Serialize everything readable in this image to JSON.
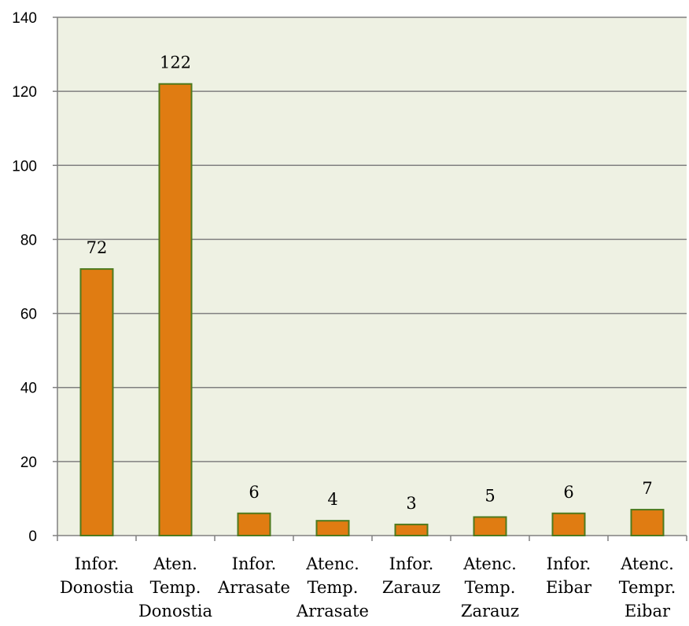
{
  "chart_data": {
    "type": "bar",
    "title": "",
    "xlabel": "",
    "ylabel": "",
    "categories": [
      [
        "Infor.",
        "Donostia"
      ],
      [
        "Aten.",
        "Temp.",
        "Donostia"
      ],
      [
        "Infor.",
        "Arrasate"
      ],
      [
        "Atenc.",
        "Temp.",
        "Arrasate"
      ],
      [
        "Infor.",
        "Zarauz"
      ],
      [
        "Atenc.",
        "Temp.",
        "Zarauz"
      ],
      [
        "Infor.",
        "Eibar"
      ],
      [
        "Atenc.",
        "Tempr.",
        "Eibar"
      ]
    ],
    "values": [
      72,
      122,
      6,
      4,
      3,
      5,
      6,
      7
    ],
    "ylim": [
      0,
      140
    ],
    "yticks": [
      0,
      20,
      40,
      60,
      80,
      100,
      120,
      140
    ],
    "grid": true,
    "legend": "none",
    "colors": {
      "bar_fill": "#E07C12",
      "bar_stroke": "#4E7A1E",
      "plot_background": "#EEF1E3",
      "gridline": "#808080",
      "axis": "#808080"
    }
  }
}
